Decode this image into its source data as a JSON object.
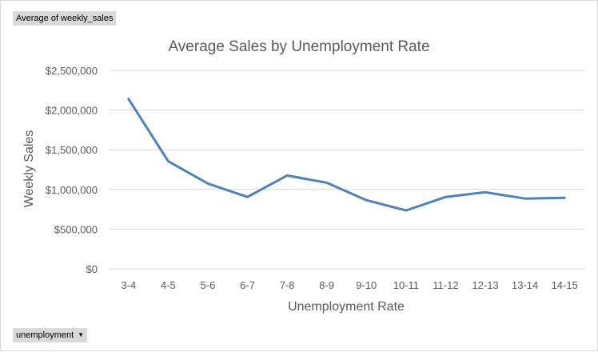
{
  "pivot": {
    "values_field": "Average of weekly_sales",
    "axis_field": "unemployment",
    "axis_field_icon": "dropdown-arrow-icon"
  },
  "colors": {
    "series": "#4f81bd",
    "gridline": "#d9d9d9",
    "text": "#595959",
    "field_button": "#d9d9d9"
  },
  "chart_data": {
    "type": "line",
    "title": "Average Sales by Unemployment Rate",
    "xlabel": "Unemployment Rate",
    "ylabel": "Weekly Sales",
    "categories": [
      "3-4",
      "4-5",
      "5-6",
      "6-7",
      "7-8",
      "8-9",
      "9-10",
      "10-11",
      "11-12",
      "12-13",
      "13-14",
      "14-15"
    ],
    "series": [
      {
        "values": [
          2140000,
          1355000,
          1075000,
          905000,
          1175000,
          1085000,
          865000,
          735000,
          905000,
          965000,
          885000,
          895000
        ]
      }
    ],
    "ylim": [
      0,
      2500000
    ],
    "yticks": [
      0,
      500000,
      1000000,
      1500000,
      2000000,
      2500000
    ],
    "ytick_labels": [
      "$0",
      "$500,000",
      "$1,000,000",
      "$1,500,000",
      "$2,000,000",
      "$2,500,000"
    ],
    "grid": true,
    "legend": "none"
  }
}
